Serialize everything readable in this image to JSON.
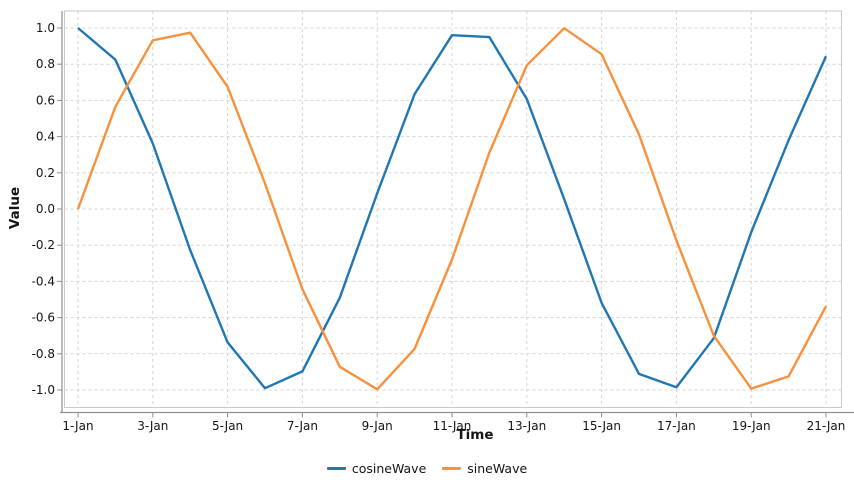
{
  "chart_data": {
    "type": "line",
    "title": "",
    "xlabel": "Time",
    "ylabel": "Value",
    "ylim": [
      -1.0,
      1.0
    ],
    "y_tick_step": 0.2,
    "ytick_labels": [
      "1.0",
      "0.8",
      "0.6",
      "0.4",
      "0.2",
      "0.0",
      "-0.2",
      "-0.4",
      "-0.6",
      "-0.8",
      "-1.0"
    ],
    "xtick_labels": [
      "1-Jan",
      "3-Jan",
      "5-Jan",
      "7-Jan",
      "9-Jan",
      "11-Jan",
      "13-Jan",
      "15-Jan",
      "17-Jan",
      "19-Jan",
      "21-Jan"
    ],
    "x_tick_every": 2,
    "grid": "dashed",
    "legend_position": "bottom-center",
    "categories": [
      "1-Jan",
      "2-Jan",
      "3-Jan",
      "4-Jan",
      "5-Jan",
      "6-Jan",
      "7-Jan",
      "8-Jan",
      "9-Jan",
      "10-Jan",
      "11-Jan",
      "12-Jan",
      "13-Jan",
      "14-Jan",
      "15-Jan",
      "16-Jan",
      "17-Jan",
      "18-Jan",
      "19-Jan",
      "20-Jan",
      "21-Jan"
    ],
    "series": [
      {
        "name": "cosineWave",
        "color": "#1f77b4",
        "values": [
          1.0,
          0.825,
          0.362,
          -0.227,
          -0.737,
          -0.99,
          -0.897,
          -0.49,
          0.087,
          0.635,
          0.96,
          0.95,
          0.608,
          0.054,
          -0.519,
          -0.911,
          -0.985,
          -0.714,
          -0.129,
          0.38,
          0.844
        ]
      },
      {
        "name": "sineWave",
        "color": "#f7913d",
        "values": [
          0.0,
          0.565,
          0.932,
          0.974,
          0.675,
          0.141,
          -0.443,
          -0.872,
          -0.996,
          -0.773,
          -0.279,
          0.312,
          0.794,
          0.999,
          0.855,
          0.412,
          -0.174,
          -0.7,
          -0.992,
          -0.925,
          -0.537
        ]
      }
    ],
    "axis_color": "#8f8f8f",
    "border_color": "#c9c9c9",
    "grid_color": "#d4d4d4"
  }
}
